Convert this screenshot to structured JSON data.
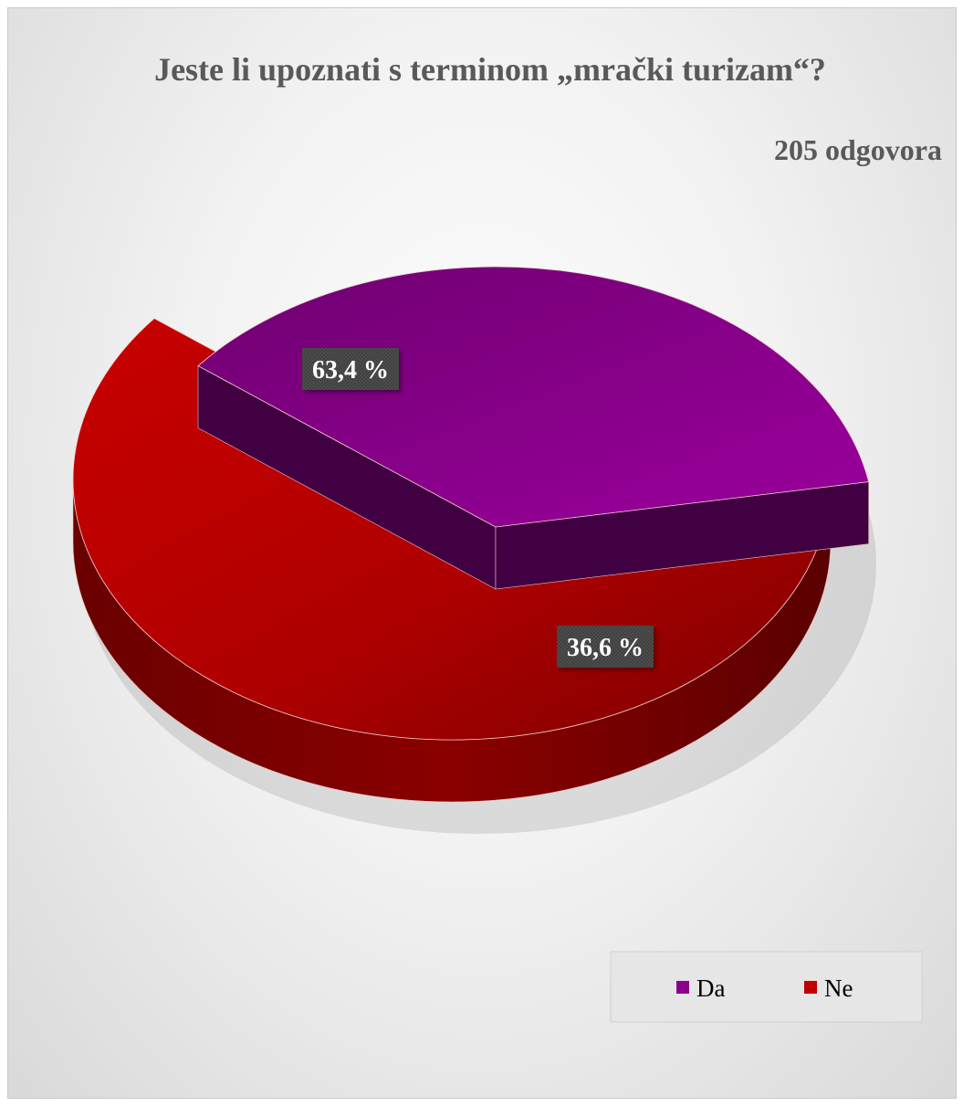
{
  "chart_data": {
    "type": "pie",
    "title": "Jeste li upoznati s terminom „mrački turizam“?",
    "subtitle": "205 odgovora",
    "categories": [
      "Da",
      "Ne"
    ],
    "values": [
      36.6,
      63.4
    ],
    "value_labels": [
      "36,6 %",
      "63,4 %"
    ],
    "colors": [
      "#8B008B",
      "#C00000"
    ],
    "legend_position": "bottom-right",
    "exploded": "Da",
    "style": "3d"
  }
}
